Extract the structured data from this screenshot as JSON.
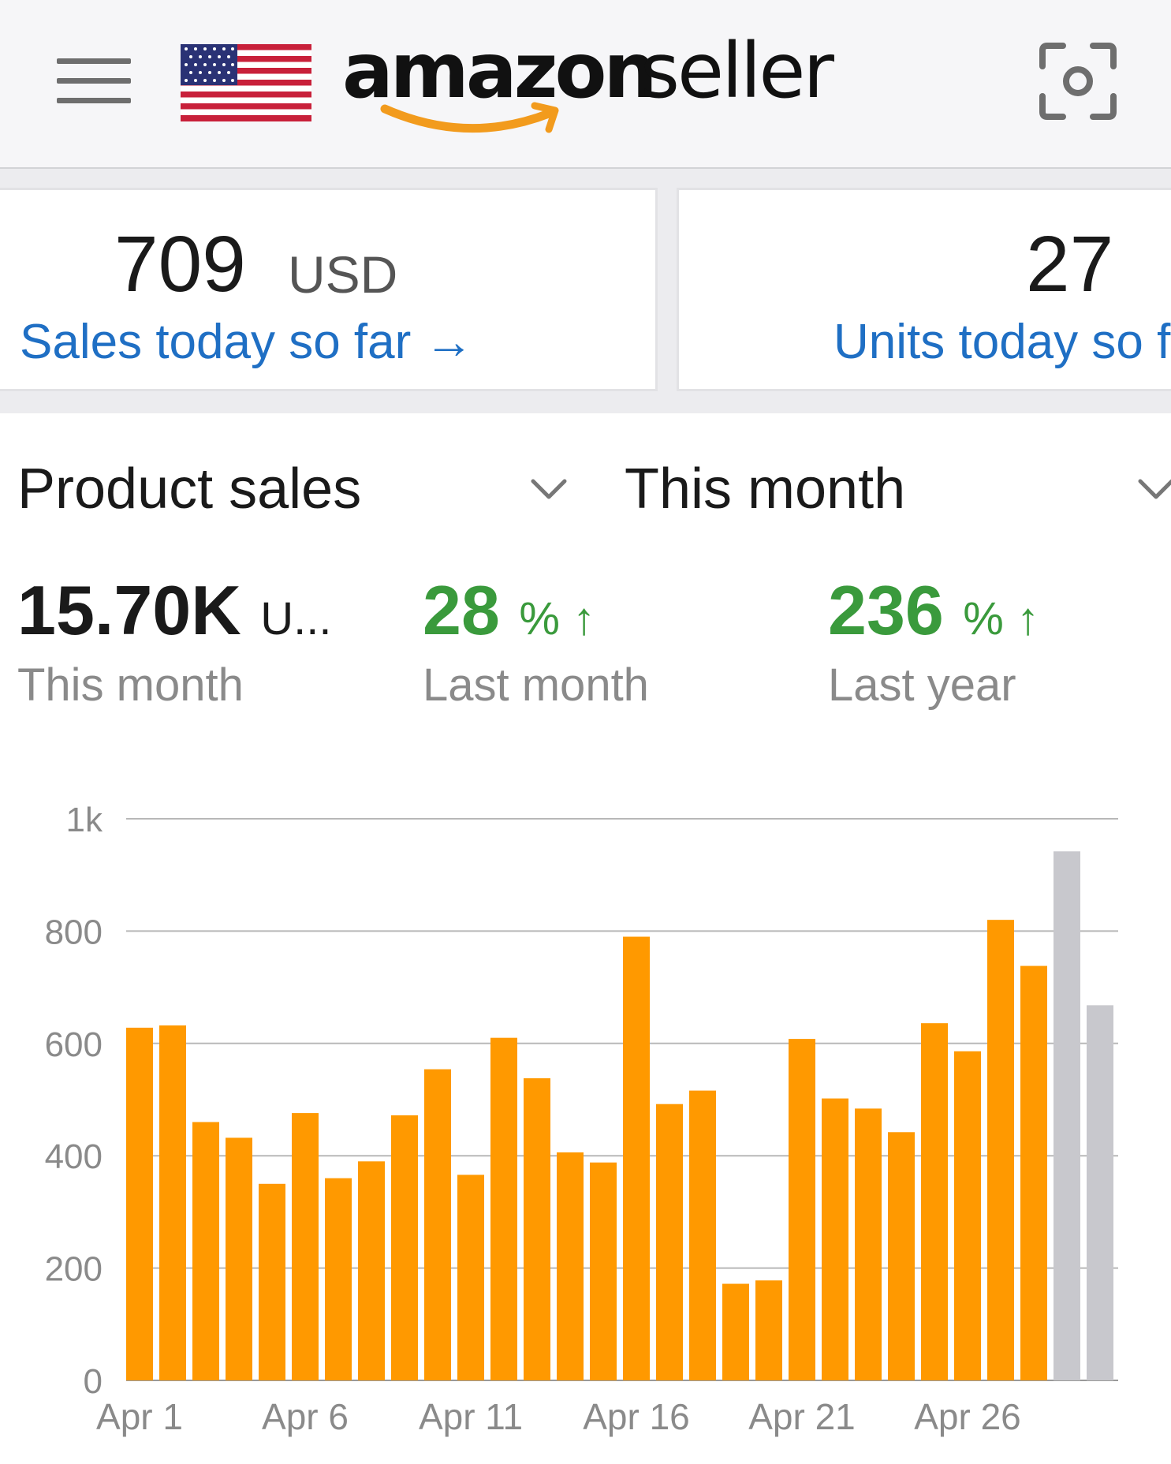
{
  "header": {
    "menu_icon": "hamburger-menu-icon",
    "flag_icon": "us-flag-icon",
    "logo_text_1": "amazon",
    "logo_text_2": "seller",
    "scan_icon": "camera-scan-icon"
  },
  "cards": {
    "sales": {
      "value": "709",
      "unit": "USD",
      "link": "Sales today so far →"
    },
    "units": {
      "value": "27",
      "link": "Units today so far"
    }
  },
  "selectors": {
    "metric": "Product sales",
    "period": "This month"
  },
  "stats": [
    {
      "value": "15.70K",
      "unit": "U...",
      "label": "This month"
    },
    {
      "value": "28",
      "unit": "% ↑",
      "label": "Last month"
    },
    {
      "value": "236",
      "unit": "% ↑",
      "label": "Last year"
    }
  ],
  "colors": {
    "accent_orange": "#ff9900",
    "projection_gray": "#c8c8cd",
    "link_blue": "#1f6fc4",
    "positive_green": "#3a9a3c"
  },
  "chart_data": {
    "type": "bar",
    "categories": [
      "Apr 1",
      "Apr 2",
      "Apr 3",
      "Apr 4",
      "Apr 5",
      "Apr 6",
      "Apr 7",
      "Apr 8",
      "Apr 9",
      "Apr 10",
      "Apr 11",
      "Apr 12",
      "Apr 13",
      "Apr 14",
      "Apr 15",
      "Apr 16",
      "Apr 17",
      "Apr 18",
      "Apr 19",
      "Apr 20",
      "Apr 21",
      "Apr 22",
      "Apr 23",
      "Apr 24",
      "Apr 25",
      "Apr 26",
      "Apr 27",
      "Apr 28",
      "Apr 29",
      "Apr 30"
    ],
    "tick_labels": [
      "Apr 1",
      "Apr 6",
      "Apr 11",
      "Apr 16",
      "Apr 21",
      "Apr 26"
    ],
    "series": [
      {
        "values": [
          628,
          632,
          460,
          432,
          350,
          476,
          360,
          390,
          472,
          554,
          366,
          610,
          538,
          406,
          388,
          790,
          492,
          516,
          172,
          178,
          608,
          502,
          484,
          442,
          636,
          586,
          820,
          738,
          null,
          null
        ]
      },
      {
        "values": [
          null,
          null,
          null,
          null,
          null,
          null,
          null,
          null,
          null,
          null,
          null,
          null,
          null,
          null,
          null,
          null,
          null,
          null,
          null,
          null,
          null,
          null,
          null,
          null,
          null,
          null,
          null,
          null,
          942,
          668
        ]
      }
    ],
    "yticks": [
      "0",
      "200",
      "400",
      "600",
      "800",
      "1k"
    ],
    "ylim": [
      0,
      1000
    ],
    "grid": true
  }
}
